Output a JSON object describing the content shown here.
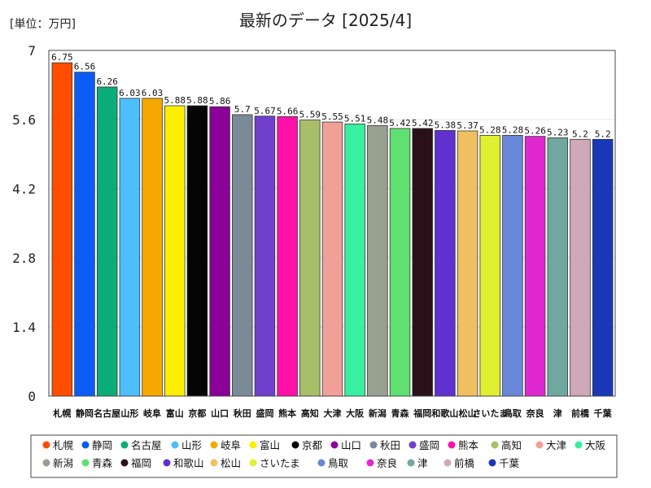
{
  "chart_data": {
    "type": "bar",
    "title": "最新のデータ [2025/4]",
    "unit_label": "[単位：万円]",
    "ylim": [
      0,
      7
    ],
    "yticks": [
      "0",
      "1.4",
      "2.8",
      "4.2",
      "5.6",
      "7"
    ],
    "legend_position": "bottom",
    "categories": [
      "札幌",
      "静岡",
      "名古屋",
      "山形",
      "岐阜",
      "富山",
      "京都",
      "山口",
      "秋田",
      "盛岡",
      "熊本",
      "高知",
      "大津",
      "大阪",
      "新潟",
      "青森",
      "福岡",
      "和歌山",
      "松山",
      "さいたま",
      "鳥取",
      "奈良",
      "津",
      "前橋",
      "千葉"
    ],
    "values": [
      6.75,
      6.56,
      6.26,
      6.03,
      6.03,
      5.88,
      5.88,
      5.86,
      5.7,
      5.67,
      5.66,
      5.59,
      5.55,
      5.51,
      5.48,
      5.42,
      5.42,
      5.38,
      5.37,
      5.28,
      5.28,
      5.26,
      5.23,
      5.2,
      5.2
    ],
    "value_labels": [
      "6.75",
      "6.56",
      "6.26",
      "6.03",
      "6.03",
      "5.88",
      "5.88",
      "5.86",
      "5.7",
      "5.67",
      "5.66",
      "5.59",
      "5.55",
      "5.51",
      "5.48",
      "5.42",
      "5.42",
      "5.38",
      "5.37",
      "5.28",
      "5.28",
      "5.26",
      "5.23",
      "5.2",
      "5.2"
    ],
    "x_tick_labels": [
      "札幌",
      "静岡",
      "名古屋",
      "山形",
      "岐阜",
      "富山",
      "京都",
      "山口",
      "秋田",
      "盛岡",
      "熊本",
      "高知",
      "大津",
      "大阪",
      "新潟",
      "青森",
      "福岡",
      "和歌山",
      "松山",
      "さいたま",
      "鳥取",
      "奈良",
      "津",
      "前橋",
      "千葉"
    ],
    "colors": [
      "#ff4d00",
      "#0a5cf5",
      "#0aad78",
      "#4dbfff",
      "#f5a800",
      "#ffee00",
      "#050505",
      "#8b0099",
      "#7a8a96",
      "#7040cc",
      "#ff10a8",
      "#a8bf6a",
      "#f0a098",
      "#38f0a0",
      "#98a090",
      "#60e070",
      "#2a1018",
      "#6030d0",
      "#f0c060",
      "#e0f030",
      "#6a88d8",
      "#e028d0",
      "#70a8a0",
      "#d0a8b8",
      "#1838b8"
    ]
  }
}
